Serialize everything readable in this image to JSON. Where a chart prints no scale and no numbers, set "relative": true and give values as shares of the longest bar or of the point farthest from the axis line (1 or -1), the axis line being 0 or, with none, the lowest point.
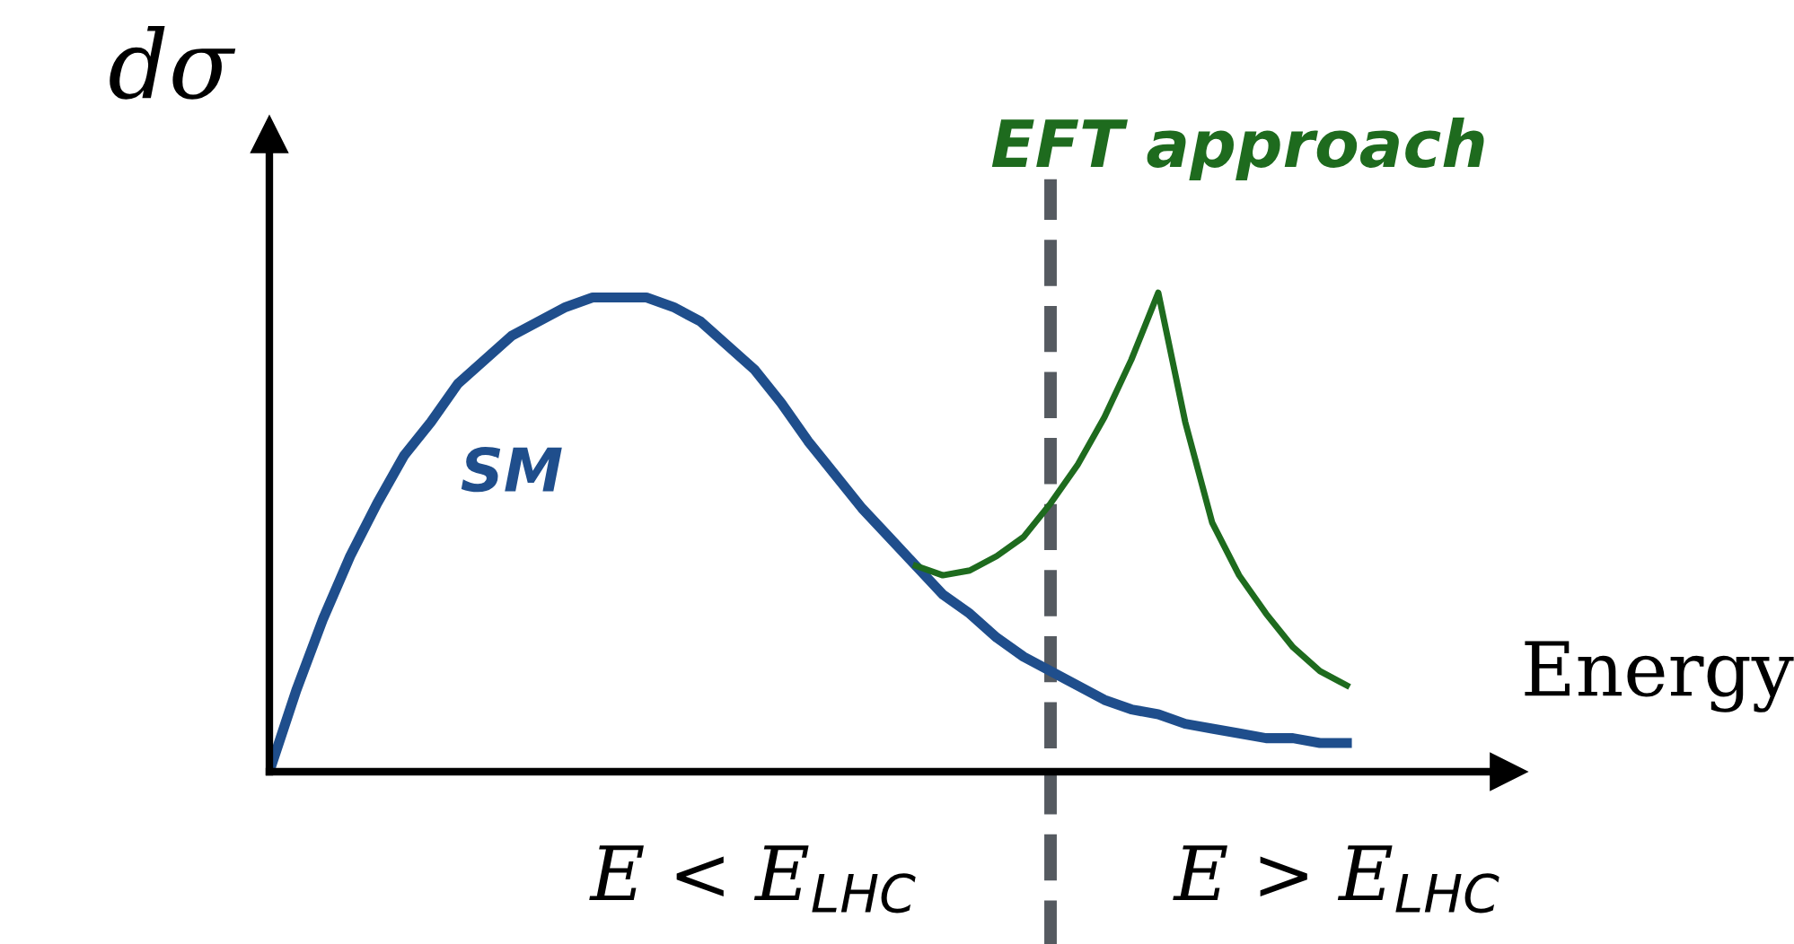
{
  "chart_data": {
    "type": "line",
    "relative": true,
    "xlabel": "Energy",
    "ylabel": "dσ",
    "categories": [
      null,
      null,
      null,
      null,
      null,
      null,
      null,
      null,
      null,
      null,
      null,
      null,
      null,
      null,
      null,
      null,
      null,
      null,
      null,
      null,
      null,
      null,
      null,
      null,
      null,
      null,
      null,
      null,
      null,
      null,
      null,
      null,
      null,
      null,
      null,
      null,
      null,
      null,
      null,
      null,
      null
    ],
    "series": [
      {
        "name": "SM",
        "color": "#1f4e8c",
        "values": [
          0,
          0.17,
          0.32,
          0.45,
          0.56,
          0.66,
          0.73,
          0.81,
          0.86,
          0.91,
          0.94,
          0.97,
          0.99,
          0.99,
          0.99,
          0.97,
          0.94,
          0.89,
          0.84,
          0.77,
          0.69,
          0.62,
          0.55,
          0.49,
          0.43,
          0.37,
          0.33,
          0.28,
          0.24,
          0.21,
          0.18,
          0.15,
          0.13,
          0.12,
          0.1,
          0.09,
          0.08,
          0.07,
          0.07,
          0.06,
          0.06
        ]
      },
      {
        "name": "EFT approach",
        "color": "#1e6b1e",
        "values": [
          null,
          null,
          null,
          null,
          null,
          null,
          null,
          null,
          null,
          null,
          null,
          null,
          null,
          null,
          null,
          null,
          null,
          null,
          null,
          null,
          null,
          null,
          null,
          null,
          0.43,
          0.41,
          0.42,
          0.45,
          0.49,
          0.56,
          0.64,
          0.74,
          0.86,
          1.0,
          0.73,
          0.52,
          0.41,
          0.33,
          0.26,
          0.21,
          0.18
        ]
      }
    ],
    "annotations": [
      "E < E$_{LHC}$",
      "E > E$_{LHC}$"
    ],
    "legend": false,
    "grid": false,
    "marker": "none",
    "line_style": "solid"
  }
}
